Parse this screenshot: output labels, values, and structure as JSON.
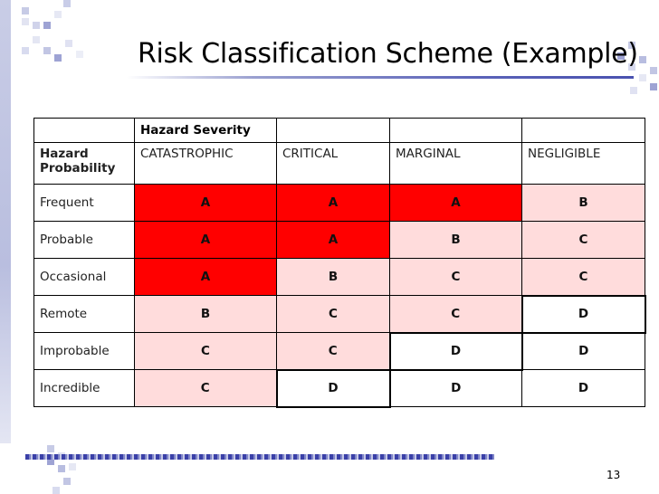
{
  "title": "Risk Classification Scheme (Example)",
  "slide_number": "13",
  "table": {
    "severity_header": "Hazard Severity",
    "probability_header_line1": "Hazard",
    "probability_header_line2": "Probability",
    "severity_levels": [
      "CATASTROPHIC",
      "CRITICAL",
      "MARGINAL",
      "NEGLIGIBLE"
    ],
    "rows": [
      {
        "label": "Frequent",
        "cells": [
          "A",
          "A",
          "A",
          "B"
        ]
      },
      {
        "label": "Probable",
        "cells": [
          "A",
          "A",
          "B",
          "C"
        ]
      },
      {
        "label": "Occasional",
        "cells": [
          "A",
          "B",
          "C",
          "C"
        ]
      },
      {
        "label": "Remote",
        "cells": [
          "B",
          "C",
          "C",
          "D"
        ]
      },
      {
        "label": "Improbable",
        "cells": [
          "C",
          "C",
          "D",
          "D"
        ]
      },
      {
        "label": "Incredible",
        "cells": [
          "C",
          "D",
          "D",
          "D"
        ]
      }
    ]
  },
  "colors": {
    "A": "#ff0000",
    "B": "#ffdcdc",
    "C": "#ffdcdc",
    "D": "#ffffff",
    "accent": "#4a52b0"
  }
}
